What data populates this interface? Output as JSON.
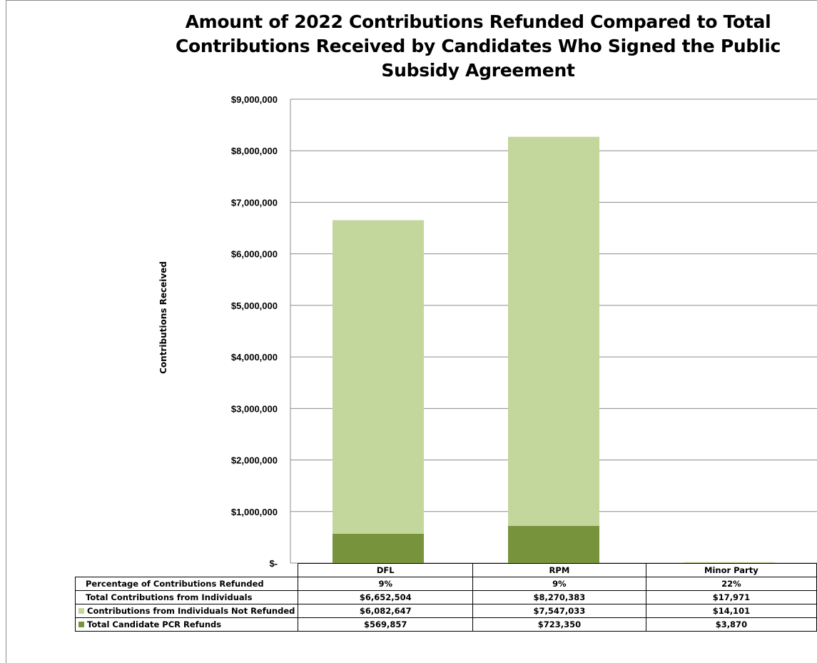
{
  "chart_data": {
    "type": "bar",
    "stacked": true,
    "title": "Amount of  2022 Contributions Refunded Compared to Total\nContributions Received  by Candidates Who Signed the Public\nSubsidy Agreement",
    "ylabel": "Contributions Received",
    "ylim": [
      0,
      9000000
    ],
    "yticks": [
      "$-",
      "$1,000,000",
      "$2,000,000",
      "$3,000,000",
      "$4,000,000",
      "$5,000,000",
      "$6,000,000",
      "$7,000,000",
      "$8,000,000",
      "$9,000,000"
    ],
    "grid": true,
    "legend": "data-table",
    "categories": [
      "DFL",
      "RPM",
      "Minor Party"
    ],
    "series": [
      {
        "name": "Total Candidate PCR Refunds",
        "values": [
          569857,
          723350,
          3870
        ],
        "color": "#77933c"
      },
      {
        "name": "Contributions from Individuals Not Refunded",
        "values": [
          6082647,
          7547033,
          14101
        ],
        "color": "#c3d69b"
      }
    ],
    "table": {
      "rows": [
        {
          "label": "Percentage of Contributions Refunded",
          "values": [
            "9%",
            "9%",
            "22%"
          ]
        },
        {
          "label": "Total Contributions from Individuals",
          "values": [
            "$6,652,504",
            "$8,270,383",
            "$17,971"
          ]
        },
        {
          "label": "Contributions from Individuals Not Refunded",
          "values": [
            "$6,082,647",
            "$7,547,033",
            "$14,101"
          ],
          "key_color": "#c3d69b"
        },
        {
          "label": "Total Candidate PCR Refunds",
          "values": [
            "$569,857",
            "$723,350",
            "$3,870"
          ],
          "key_color": "#77933c"
        }
      ]
    }
  }
}
